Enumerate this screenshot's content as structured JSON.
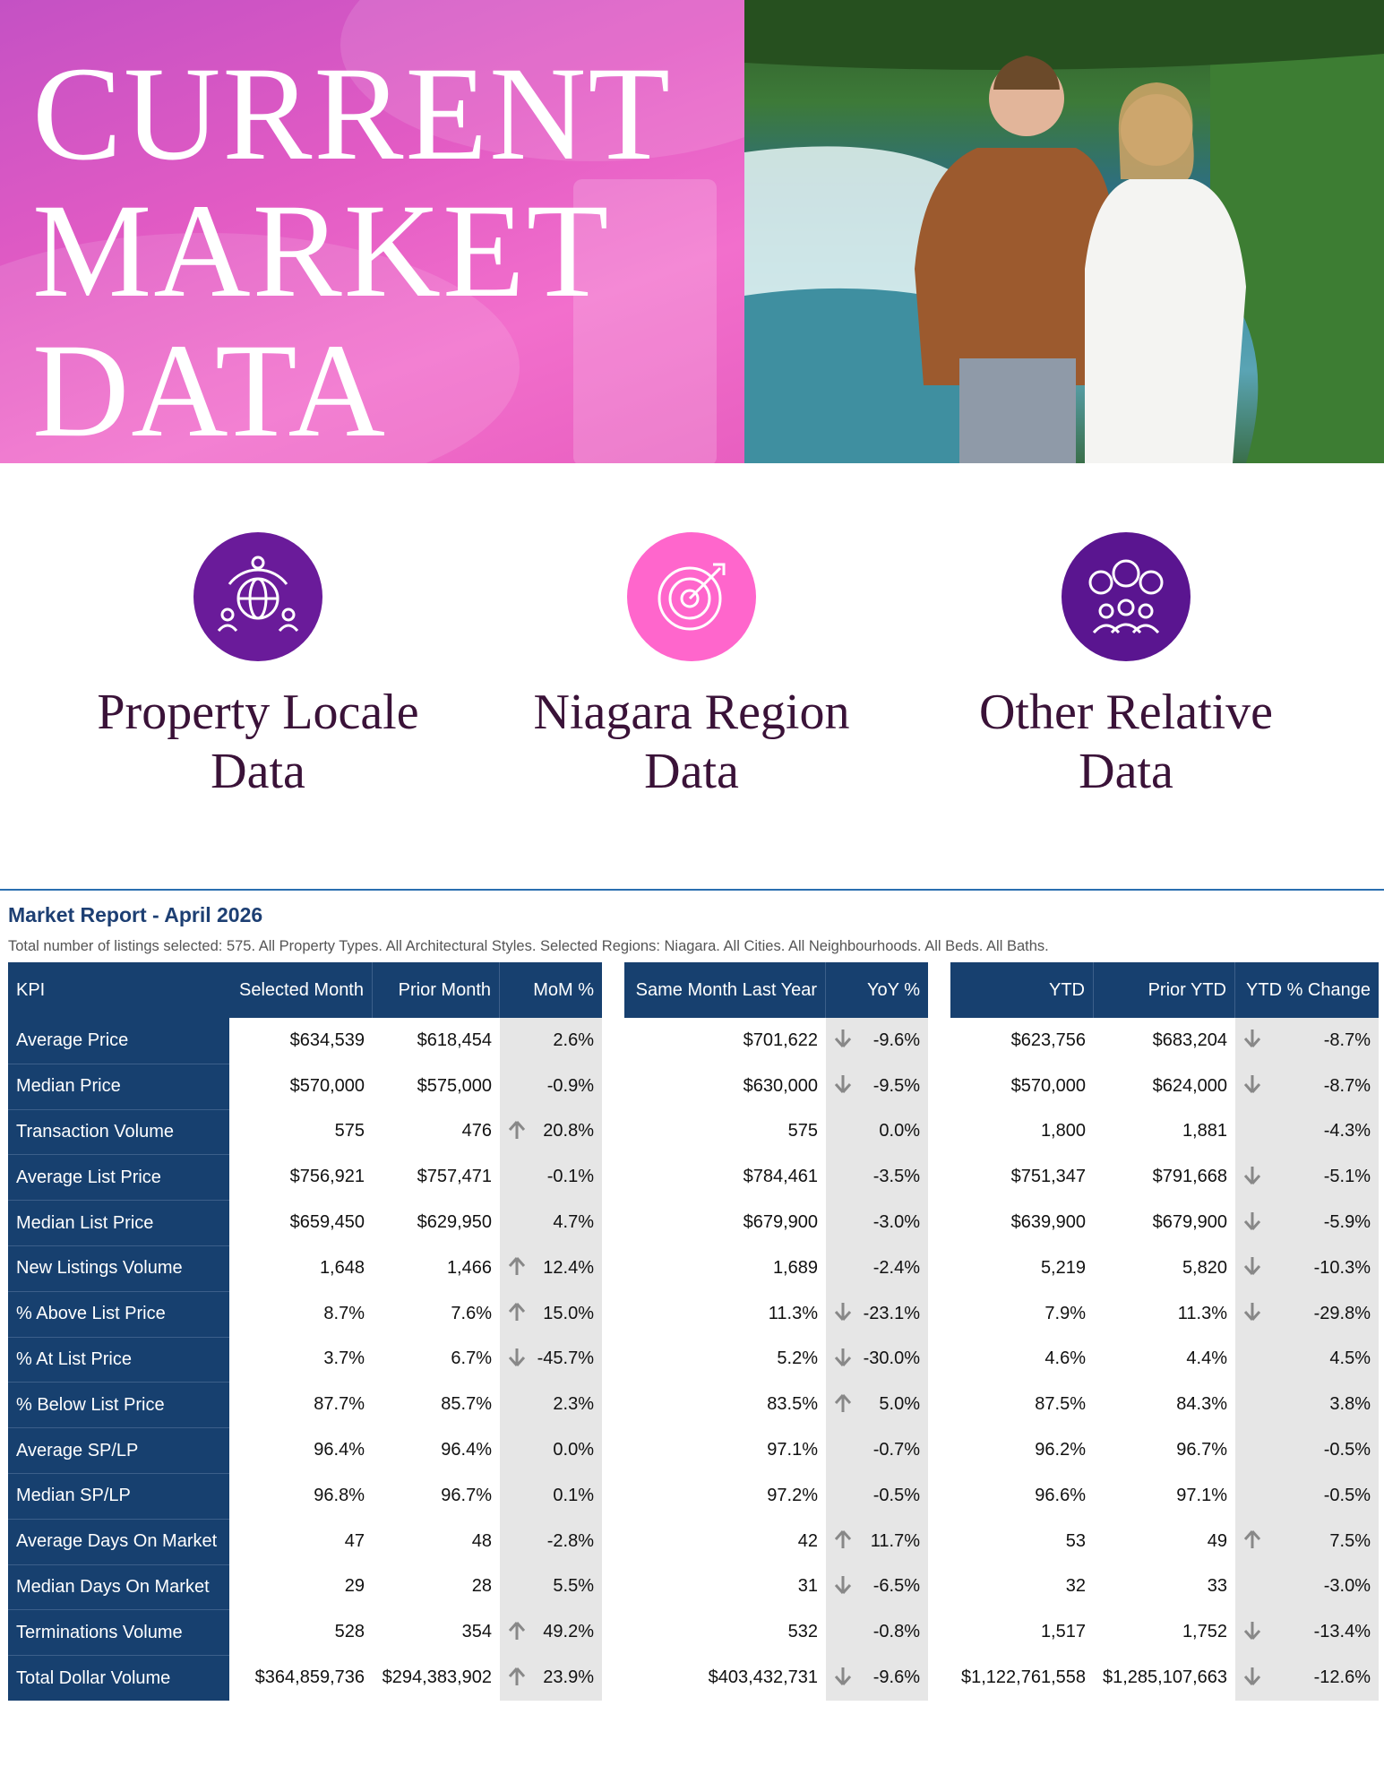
{
  "hero": {
    "title_lines": [
      "CURRENT",
      "MARKET",
      "DATA"
    ]
  },
  "cards": [
    {
      "label": "Property Locale Data"
    },
    {
      "label": "Niagara Region Data"
    },
    {
      "label": "Other Relative Data"
    }
  ],
  "report": {
    "title": "Market Report - April 2026",
    "subtitle": "Total number of listings selected: 575. All Property Types. All Architectural Styles. Selected Regions: Niagara. All Cities. All Neighbourhoods. All Beds. All Baths.",
    "headers": [
      "KPI",
      "Selected Month",
      "Prior Month",
      "MoM %",
      "Same Month Last Year",
      "YoY %",
      "YTD",
      "Prior YTD",
      "YTD % Change"
    ],
    "rows": [
      {
        "kpi": "Average Price",
        "values": [
          "$634,539",
          "$618,454",
          "2.6%",
          "$701,622",
          "-9.6%",
          "$623,756",
          "$683,204",
          "-8.7%"
        ],
        "arrows": [
          null,
          "down",
          "down"
        ]
      },
      {
        "kpi": "Median Price",
        "values": [
          "$570,000",
          "$575,000",
          "-0.9%",
          "$630,000",
          "-9.5%",
          "$570,000",
          "$624,000",
          "-8.7%"
        ],
        "arrows": [
          null,
          "down",
          "down"
        ]
      },
      {
        "kpi": "Transaction Volume",
        "values": [
          "575",
          "476",
          "20.8%",
          "575",
          "0.0%",
          "1,800",
          "1,881",
          "-4.3%"
        ],
        "arrows": [
          "up",
          null,
          null
        ]
      },
      {
        "kpi": "Average List Price",
        "values": [
          "$756,921",
          "$757,471",
          "-0.1%",
          "$784,461",
          "-3.5%",
          "$751,347",
          "$791,668",
          "-5.1%"
        ],
        "arrows": [
          null,
          null,
          "down"
        ]
      },
      {
        "kpi": "Median List Price",
        "values": [
          "$659,450",
          "$629,950",
          "4.7%",
          "$679,900",
          "-3.0%",
          "$639,900",
          "$679,900",
          "-5.9%"
        ],
        "arrows": [
          null,
          null,
          "down"
        ]
      },
      {
        "kpi": "New Listings Volume",
        "values": [
          "1,648",
          "1,466",
          "12.4%",
          "1,689",
          "-2.4%",
          "5,219",
          "5,820",
          "-10.3%"
        ],
        "arrows": [
          "up",
          null,
          "down"
        ]
      },
      {
        "kpi": "% Above List Price",
        "values": [
          "8.7%",
          "7.6%",
          "15.0%",
          "11.3%",
          "-23.1%",
          "7.9%",
          "11.3%",
          "-29.8%"
        ],
        "arrows": [
          "up",
          "down",
          "down"
        ]
      },
      {
        "kpi": "% At List Price",
        "values": [
          "3.7%",
          "6.7%",
          "-45.7%",
          "5.2%",
          "-30.0%",
          "4.6%",
          "4.4%",
          "4.5%"
        ],
        "arrows": [
          "down",
          "down",
          null
        ]
      },
      {
        "kpi": "% Below List Price",
        "values": [
          "87.7%",
          "85.7%",
          "2.3%",
          "83.5%",
          "5.0%",
          "87.5%",
          "84.3%",
          "3.8%"
        ],
        "arrows": [
          null,
          "up",
          null
        ]
      },
      {
        "kpi": "Average SP/LP",
        "values": [
          "96.4%",
          "96.4%",
          "0.0%",
          "97.1%",
          "-0.7%",
          "96.2%",
          "96.7%",
          "-0.5%"
        ],
        "arrows": [
          null,
          null,
          null
        ]
      },
      {
        "kpi": "Median SP/LP",
        "values": [
          "96.8%",
          "96.7%",
          "0.1%",
          "97.2%",
          "-0.5%",
          "96.6%",
          "97.1%",
          "-0.5%"
        ],
        "arrows": [
          null,
          null,
          null
        ]
      },
      {
        "kpi": "Average Days On Market",
        "values": [
          "47",
          "48",
          "-2.8%",
          "42",
          "11.7%",
          "53",
          "49",
          "7.5%"
        ],
        "arrows": [
          null,
          "up",
          "up"
        ]
      },
      {
        "kpi": "Median Days On Market",
        "values": [
          "29",
          "28",
          "5.5%",
          "31",
          "-6.5%",
          "32",
          "33",
          "-3.0%"
        ],
        "arrows": [
          null,
          "down",
          null
        ]
      },
      {
        "kpi": "Terminations Volume",
        "values": [
          "528",
          "354",
          "49.2%",
          "532",
          "-0.8%",
          "1,517",
          "1,752",
          "-13.4%"
        ],
        "arrows": [
          "up",
          null,
          "down"
        ]
      },
      {
        "kpi": "Total Dollar Volume",
        "values": [
          "$364,859,736",
          "$294,383,902",
          "23.9%",
          "$403,432,731",
          "-9.6%",
          "$1,122,761,558",
          "$1,285,107,663",
          "-12.6%"
        ],
        "arrows": [
          "up",
          "down",
          "down"
        ]
      }
    ]
  }
}
